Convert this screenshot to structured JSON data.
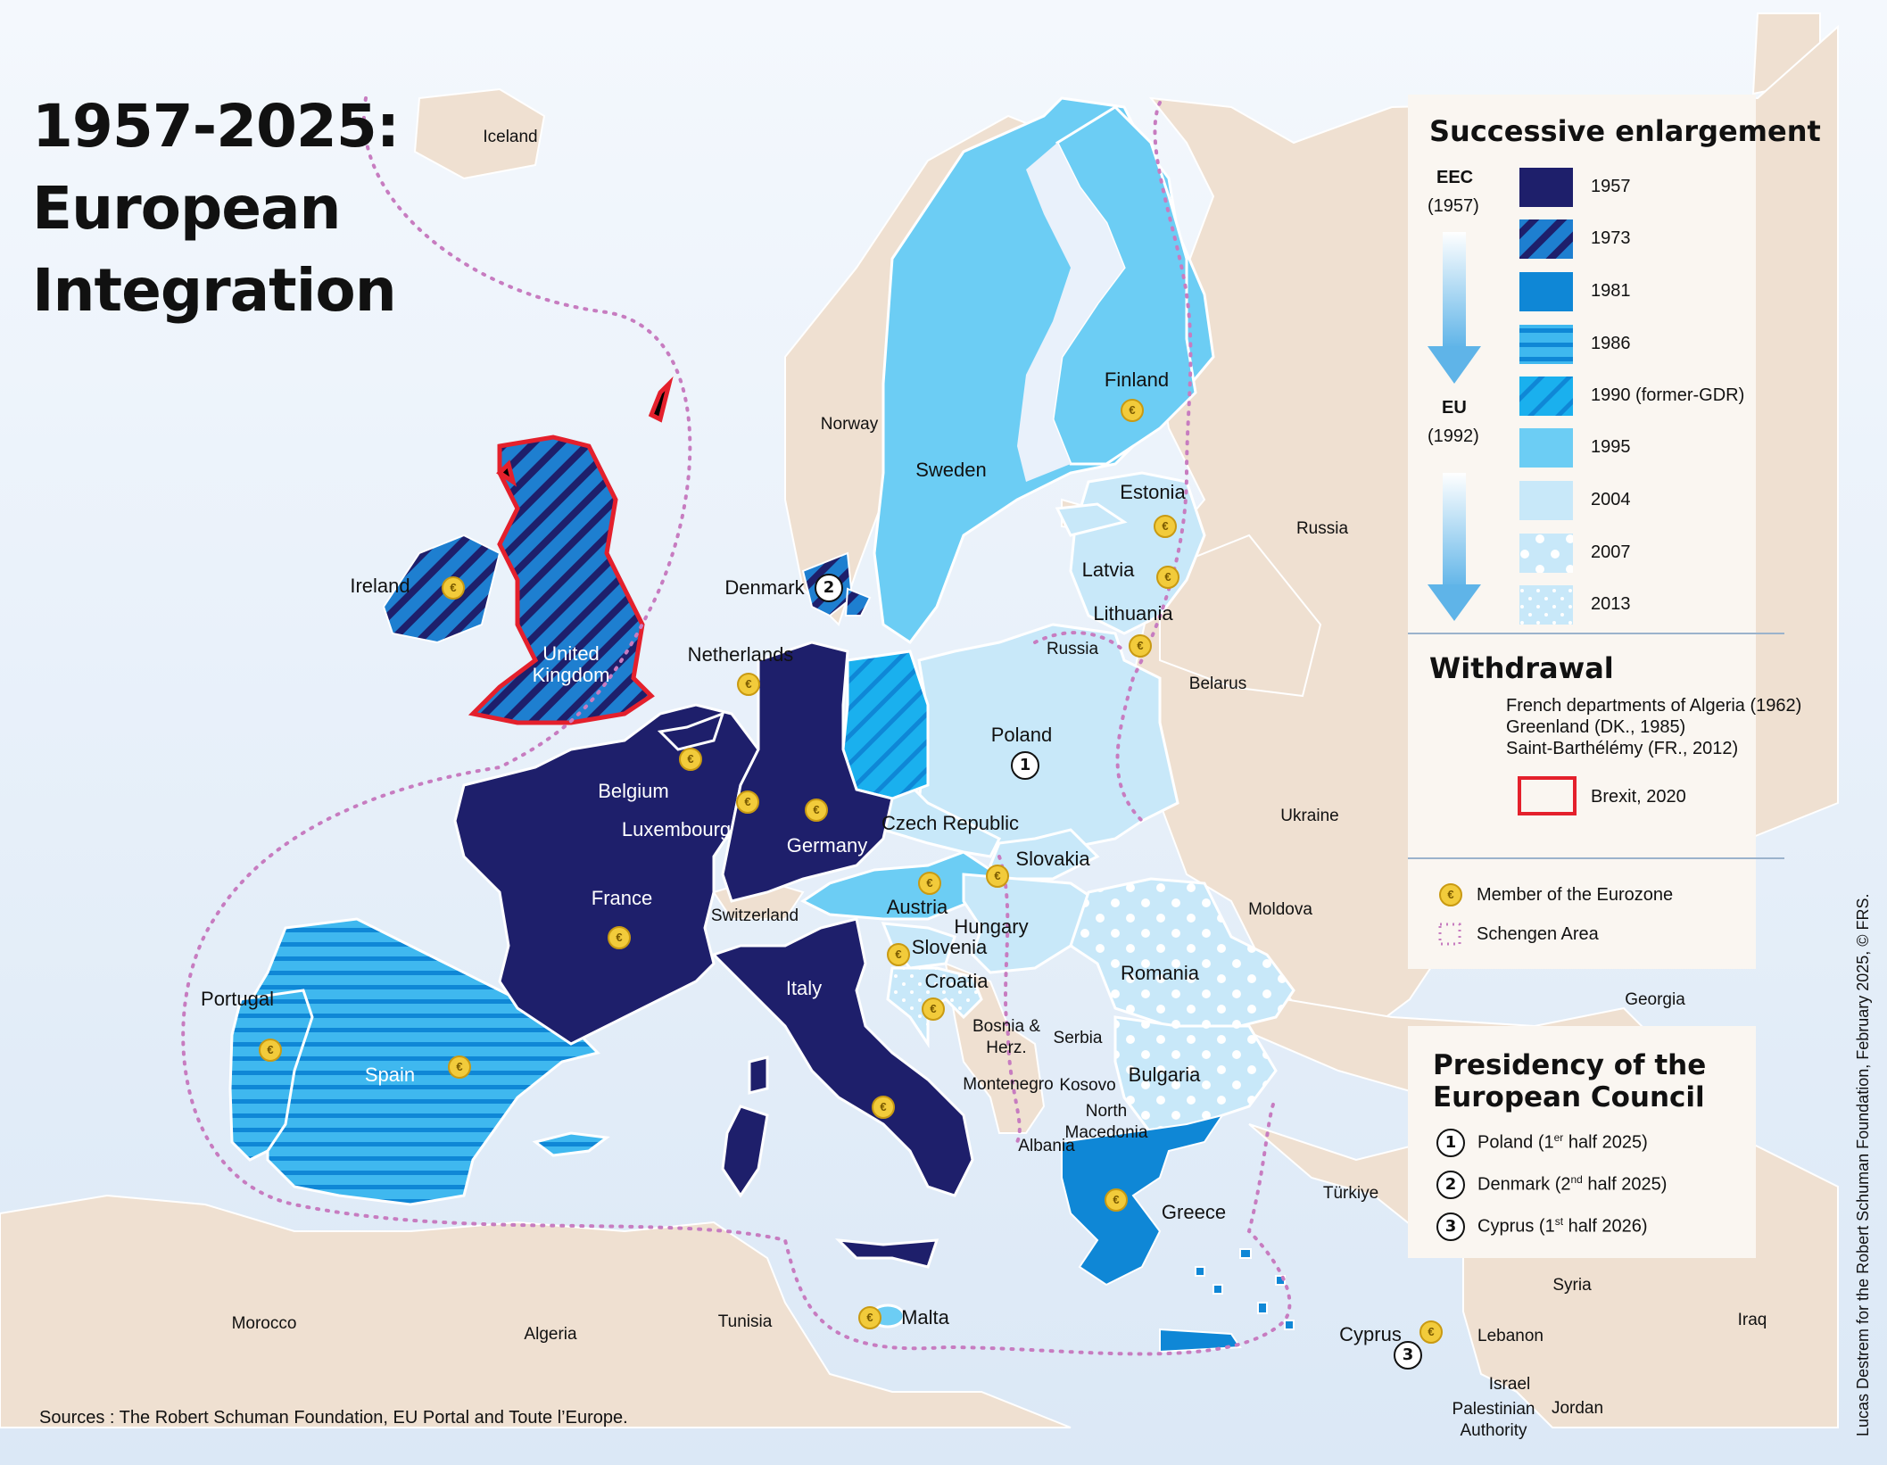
{
  "title": {
    "line1": "1957-2025:",
    "line2": "European",
    "line3": "Integration"
  },
  "legend": {
    "enlargement_title": "Successive enlargement",
    "eec_label": "EEC",
    "eec_year": "(1957)",
    "eu_label": "EU",
    "eu_year": "(1992)",
    "items": [
      {
        "year": "1957",
        "color": "#1e1f6b",
        "pattern": "solid"
      },
      {
        "year": "1973",
        "color": "#1e7fd0",
        "pattern": "diagonal-stripes"
      },
      {
        "year": "1981",
        "color": "#0f87d6",
        "pattern": "solid"
      },
      {
        "year": "1986",
        "color": "#18a3e8",
        "pattern": "horizontal-stripes"
      },
      {
        "year": "1990 (former-GDR)",
        "color": "#1ab0ee",
        "pattern": "diagonal-stripes-light"
      },
      {
        "year": "1995",
        "color": "#6ccdf4",
        "pattern": "solid"
      },
      {
        "year": "2004",
        "color": "#c8e8f9",
        "pattern": "solid"
      },
      {
        "year": "2007",
        "color": "#c8e8f9",
        "pattern": "large-dots"
      },
      {
        "year": "2013",
        "color": "#c8e8f9",
        "pattern": "small-dots"
      }
    ],
    "withdrawal_title": "Withdrawal",
    "withdrawal_lines": [
      "French departments of Algeria (1962)",
      "Greenland (DK., 1985)",
      "Saint-Barthélémy (FR., 2012)"
    ],
    "brexit_label": "Brexit, 2020",
    "eurozone_label": "Member of the Eurozone",
    "schengen_label": "Schengen Area"
  },
  "presidency": {
    "title_line1": "Presidency of the",
    "title_line2": "European Council",
    "items": [
      {
        "num": "1",
        "country": "Poland",
        "ordinal": "1",
        "sup": "er",
        "rest": " half 2025)"
      },
      {
        "num": "2",
        "country": "Denmark",
        "ordinal": "2",
        "sup": "nd",
        "rest": " half 2025)"
      },
      {
        "num": "3",
        "country": "Cyprus",
        "ordinal": "1",
        "sup": "st",
        "rest": " half 2026)"
      }
    ]
  },
  "labels": {
    "iceland": "Iceland",
    "norway": "Norway",
    "sweden": "Sweden",
    "finland": "Finland",
    "russia": "Russia",
    "russia_kal": "Russia",
    "estonia": "Estonia",
    "latvia": "Latvia",
    "lithuania": "Lithuania",
    "belarus": "Belarus",
    "ukraine": "Ukraine",
    "moldova": "Moldova",
    "ireland": "Ireland",
    "uk": "United\nKingdom",
    "denmark": "Denmark",
    "netherlands": "Netherlands",
    "belgium": "Belgium",
    "luxembourg": "Luxembourg",
    "germany": "Germany",
    "poland": "Poland",
    "czech": "Czech Republic",
    "slovakia": "Slovakia",
    "austria": "Austria",
    "hungary": "Hungary",
    "switzerland": "Switzerland",
    "slovenia": "Slovenia",
    "croatia": "Croatia",
    "romania": "Romania",
    "france": "France",
    "italy": "Italy",
    "portugal": "Portugal",
    "spain": "Spain",
    "bosnia": "Bosnia &\nHerz.",
    "serbia": "Serbia",
    "montenegro": "Montenegro",
    "kosovo": "Kosovo",
    "north_macedonia": "North\nMacedonia",
    "albania": "Albania",
    "bulgaria": "Bulgaria",
    "greece": "Greece",
    "turkiye": "Türkiye",
    "georgia": "Georgia",
    "malta": "Malta",
    "cyprus": "Cyprus",
    "syria": "Syria",
    "lebanon": "Lebanon",
    "iraq": "Iraq",
    "israel": "Israel",
    "palestinian": "Palestinian\nAuthority",
    "jordan": "Jordan",
    "morocco": "Morocco",
    "algeria": "Algeria",
    "tunisia": "Tunisia"
  },
  "presidency_markers": [
    "1",
    "2",
    "3"
  ],
  "sources": "Sources : The Robert Schuman Foundation, EU Portal and Toute l’Europe.",
  "credit": "Lucas Destrem  for the Robert Schuman Foundation, February 2025, © FRS."
}
